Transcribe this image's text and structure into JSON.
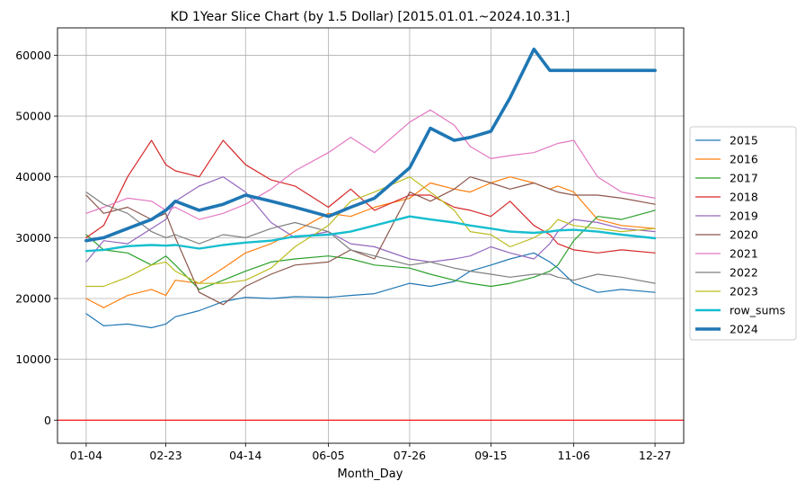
{
  "chart_data": {
    "type": "line",
    "title": "KD 1Year Slice Chart (by 1.5 Dollar) [2015.01.01.~2024.10.31.]",
    "xlabel": "Month_Day",
    "ylabel": "",
    "grid": true,
    "legend_placement": "right, outside plot area",
    "x_ticks": [
      "01-04",
      "02-23",
      "04-14",
      "06-05",
      "07-26",
      "09-15",
      "11-06",
      "12-27"
    ],
    "x_tick_days": [
      4,
      54,
      104,
      156,
      207,
      258,
      310,
      361
    ],
    "xlim": [
      -14,
      379
    ],
    "y_ticks": [
      0,
      10000,
      20000,
      30000,
      40000,
      50000,
      60000
    ],
    "ylim": [
      -3800,
      64500
    ],
    "reference_line": {
      "y": 0,
      "color": "#ff0000"
    },
    "x_days": [
      4,
      15,
      30,
      45,
      54,
      60,
      75,
      90,
      104,
      120,
      135,
      156,
      170,
      185,
      207,
      220,
      235,
      245,
      258,
      270,
      285,
      295,
      300,
      310,
      325,
      340,
      361
    ],
    "series": [
      {
        "name": "2015",
        "color": "#1f77b4",
        "width": 1.2,
        "values": [
          17500,
          15500,
          15800,
          15200,
          15800,
          17000,
          18000,
          19500,
          20200,
          20000,
          20300,
          20200,
          20500,
          20800,
          22500,
          22000,
          22800,
          24500,
          25500,
          26500,
          27500,
          26000,
          25000,
          22500,
          21000,
          21500,
          21000
        ]
      },
      {
        "name": "2016",
        "color": "#ff7f0e",
        "width": 1.2,
        "values": [
          20000,
          18500,
          20500,
          21500,
          20500,
          23000,
          22500,
          25000,
          27500,
          29000,
          31000,
          34000,
          33500,
          35000,
          36500,
          39000,
          38000,
          37500,
          39000,
          40000,
          39000,
          38000,
          38500,
          37500,
          33000,
          32000,
          31500
        ]
      },
      {
        "name": "2017",
        "color": "#2ca02c",
        "width": 1.2,
        "values": [
          30500,
          28000,
          27500,
          25500,
          27000,
          25500,
          21500,
          23000,
          24500,
          26000,
          26500,
          27000,
          26500,
          25500,
          25000,
          24000,
          23000,
          22500,
          22000,
          22500,
          23500,
          24500,
          25500,
          29500,
          33500,
          33000,
          34500
        ]
      },
      {
        "name": "2018",
        "color": "#d62728",
        "width": 1.2,
        "values": [
          30000,
          32000,
          40000,
          46000,
          42000,
          41000,
          40000,
          46000,
          42000,
          39500,
          38500,
          35000,
          38000,
          34500,
          37000,
          37000,
          35000,
          34500,
          33500,
          36000,
          32000,
          30500,
          29000,
          28000,
          27500,
          28000,
          27500
        ]
      },
      {
        "name": "2019",
        "color": "#9467bd",
        "width": 1.2,
        "values": [
          26000,
          29500,
          29000,
          31500,
          33000,
          36000,
          38500,
          40000,
          37500,
          32500,
          30000,
          31000,
          29000,
          28500,
          26500,
          26000,
          26500,
          27000,
          28500,
          27500,
          26500,
          29000,
          31000,
          33000,
          32500,
          31500,
          31000
        ]
      },
      {
        "name": "2020",
        "color": "#8c564b",
        "width": 1.2,
        "values": [
          37000,
          34000,
          35000,
          33000,
          34000,
          30000,
          21000,
          19000,
          22000,
          24000,
          25500,
          26000,
          28000,
          26500,
          37500,
          36000,
          38000,
          40000,
          39000,
          38000,
          39000,
          38000,
          37500,
          37000,
          37000,
          36500,
          35500
        ]
      },
      {
        "name": "2021",
        "color": "#e377c2",
        "width": 1.2,
        "values": [
          34000,
          35000,
          36500,
          36000,
          34500,
          35000,
          33000,
          34000,
          35500,
          38000,
          41000,
          44000,
          46500,
          44000,
          49000,
          51000,
          48500,
          45000,
          43000,
          43500,
          44000,
          45000,
          45500,
          46000,
          40000,
          37500,
          36500
        ]
      },
      {
        "name": "2022",
        "color": "#7f7f7f",
        "width": 1.2,
        "values": [
          37500,
          35500,
          34000,
          31000,
          30000,
          30500,
          29000,
          30500,
          30000,
          31500,
          32500,
          31000,
          28000,
          27000,
          25500,
          26000,
          25000,
          24500,
          24000,
          23500,
          24000,
          24000,
          23500,
          23000,
          24000,
          23500,
          22500
        ]
      },
      {
        "name": "2023",
        "color": "#bcbd22",
        "width": 1.2,
        "values": [
          22000,
          22000,
          23500,
          25500,
          26000,
          24500,
          22500,
          22500,
          23000,
          25000,
          28500,
          32000,
          36000,
          37500,
          40000,
          37500,
          34500,
          31000,
          30500,
          28500,
          30000,
          31500,
          33000,
          32000,
          31500,
          31000,
          31500
        ]
      },
      {
        "name": "row_sums",
        "color": "#17becf",
        "width": 2.4,
        "values": [
          27800,
          28000,
          28600,
          28800,
          28700,
          28800,
          28200,
          28800,
          29200,
          29500,
          30200,
          30500,
          31000,
          32000,
          33500,
          33000,
          32500,
          32000,
          31500,
          31000,
          30800,
          31000,
          31200,
          31300,
          31000,
          30500,
          29900
        ]
      },
      {
        "name": "2024",
        "color": "#1f77b4",
        "width": 3.6,
        "values": [
          29500,
          30000,
          31500,
          33000,
          34500,
          36000,
          34500,
          35500,
          37000,
          36000,
          35000,
          33500,
          35000,
          36500,
          41500,
          48000,
          46000,
          46500,
          47500,
          53000,
          61000,
          57500,
          57500,
          57500,
          57500,
          57500,
          57500
        ]
      }
    ]
  }
}
